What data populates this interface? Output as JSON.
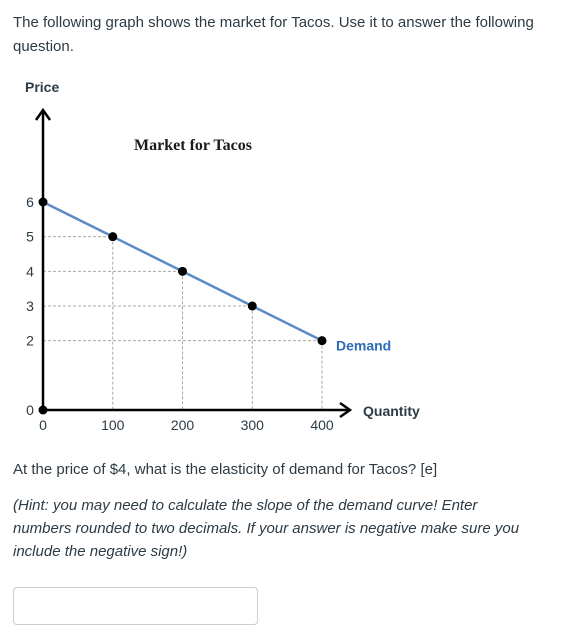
{
  "intro_text": "The following graph shows the market for Tacos. Use it to answer the following question.",
  "chart_data": {
    "type": "line",
    "title": "Market for Tacos",
    "ylabel": "Price",
    "xlabel": "Quantity",
    "x_ticks": [
      "0",
      "100",
      "200",
      "300",
      "400"
    ],
    "y_ticks": [
      "0",
      "2",
      "3",
      "4",
      "5",
      "6"
    ],
    "xlim": [
      0,
      400
    ],
    "ylim": [
      0,
      6
    ],
    "series": [
      {
        "name": "Demand",
        "color": "#5b8ac6",
        "points": [
          {
            "x": 0,
            "y": 6
          },
          {
            "x": 100,
            "y": 5
          },
          {
            "x": 200,
            "y": 4
          },
          {
            "x": 300,
            "y": 3
          },
          {
            "x": 400,
            "y": 2
          }
        ]
      }
    ],
    "origin_point": {
      "x": 0,
      "y": 0
    },
    "guide_lines": "dashed",
    "label_color": "#2d6db5"
  },
  "question_text": "At the price of $4, what is the elasticity of demand for Tacos? [e]",
  "hint_text": "(Hint: you may need to calculate the slope of the demand curve! Enter numbers rounded to two decimals. If your answer is negative make sure you include the negative sign!)",
  "answer": {
    "value": ""
  }
}
